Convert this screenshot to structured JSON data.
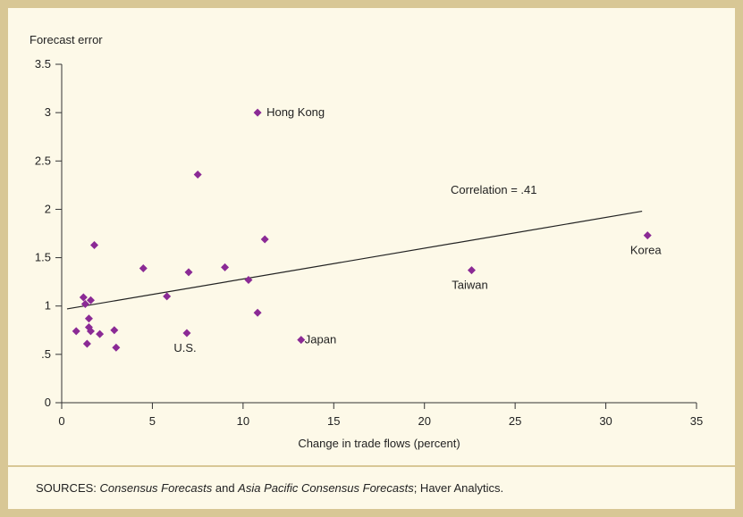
{
  "chart_data": {
    "type": "scatter",
    "ylabel": "Forecast error",
    "xlabel": "Change in trade flows (percent)",
    "xlim": [
      0,
      35
    ],
    "ylim": [
      0,
      3.5
    ],
    "x_ticks": [
      0,
      5,
      10,
      15,
      20,
      25,
      30,
      35
    ],
    "x_tick_labels": [
      "0",
      "5",
      "10",
      "15",
      "20",
      "25",
      "30",
      "35"
    ],
    "y_ticks": [
      0,
      0.5,
      1,
      1.5,
      2,
      2.5,
      3,
      3.5
    ],
    "y_tick_labels": [
      "0",
      ".5",
      "1",
      "1.5",
      "2",
      "2.5",
      "3",
      "3.5"
    ],
    "marker_color": "#8b2a95",
    "points": [
      {
        "x": 10.8,
        "y": 3.0,
        "label": "Hong Kong"
      },
      {
        "x": 7.5,
        "y": 2.36,
        "label": ""
      },
      {
        "x": 11.2,
        "y": 1.69,
        "label": ""
      },
      {
        "x": 1.8,
        "y": 1.63,
        "label": ""
      },
      {
        "x": 4.5,
        "y": 1.39,
        "label": ""
      },
      {
        "x": 9.0,
        "y": 1.4,
        "label": ""
      },
      {
        "x": 7.0,
        "y": 1.35,
        "label": ""
      },
      {
        "x": 10.3,
        "y": 1.27,
        "label": ""
      },
      {
        "x": 5.8,
        "y": 1.1,
        "label": ""
      },
      {
        "x": 1.2,
        "y": 1.09,
        "label": ""
      },
      {
        "x": 1.6,
        "y": 1.06,
        "label": ""
      },
      {
        "x": 1.3,
        "y": 1.02,
        "label": ""
      },
      {
        "x": 10.8,
        "y": 0.93,
        "label": ""
      },
      {
        "x": 1.5,
        "y": 0.87,
        "label": ""
      },
      {
        "x": 1.5,
        "y": 0.78,
        "label": ""
      },
      {
        "x": 1.6,
        "y": 0.74,
        "label": ""
      },
      {
        "x": 2.9,
        "y": 0.75,
        "label": ""
      },
      {
        "x": 0.8,
        "y": 0.74,
        "label": ""
      },
      {
        "x": 2.1,
        "y": 0.71,
        "label": ""
      },
      {
        "x": 6.9,
        "y": 0.72,
        "label": "U.S."
      },
      {
        "x": 1.4,
        "y": 0.61,
        "label": ""
      },
      {
        "x": 3.0,
        "y": 0.57,
        "label": ""
      },
      {
        "x": 13.2,
        "y": 0.65,
        "label": "Japan"
      },
      {
        "x": 22.6,
        "y": 1.37,
        "label": "Taiwan"
      },
      {
        "x": 32.3,
        "y": 1.73,
        "label": "Korea"
      }
    ],
    "trendline": {
      "x": [
        0,
        32
      ],
      "y": [
        0.97,
        1.98
      ]
    },
    "annotation": "Correlation = .41"
  },
  "sources": {
    "prefix": "SOURCES: ",
    "italic1": "Consensus Forecasts",
    "mid": " and ",
    "italic2": "Asia Pacific Consensus Forecasts",
    "suffix": "; Haver Analytics."
  }
}
